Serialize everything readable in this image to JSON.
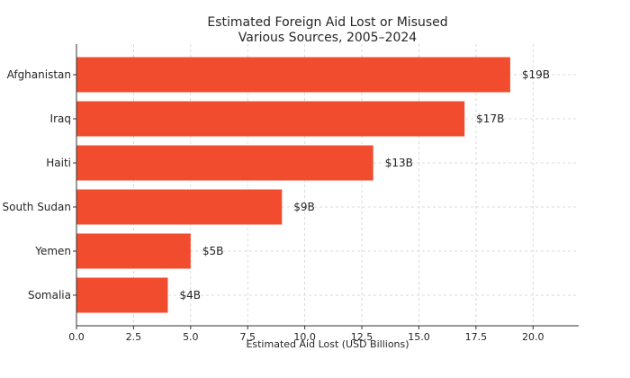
{
  "chart_data": {
    "type": "bar",
    "orientation": "horizontal",
    "title": "Estimated Foreign Aid Lost or Misused",
    "subtitle": "Various Sources, 2005–2024",
    "xlabel": "Estimated Aid Lost (USD Billions)",
    "ylabel": "",
    "categories": [
      "Afghanistan",
      "Iraq",
      "Haiti",
      "South Sudan",
      "Yemen",
      "Somalia"
    ],
    "values": [
      19,
      17,
      13,
      9,
      5,
      4
    ],
    "data_labels": [
      "$19B",
      "$17B",
      "$13B",
      "$9B",
      "$5B",
      "$4B"
    ],
    "xlim": [
      0,
      22
    ],
    "xticks": [
      0,
      2.5,
      5,
      7.5,
      10,
      12.5,
      15,
      17.5,
      20
    ],
    "xtick_labels": [
      "0.0",
      "2.5",
      "5.0",
      "7.5",
      "10.0",
      "12.5",
      "15.0",
      "17.5",
      "20.0"
    ],
    "grid": true,
    "bar_color": "#f24c2f"
  }
}
